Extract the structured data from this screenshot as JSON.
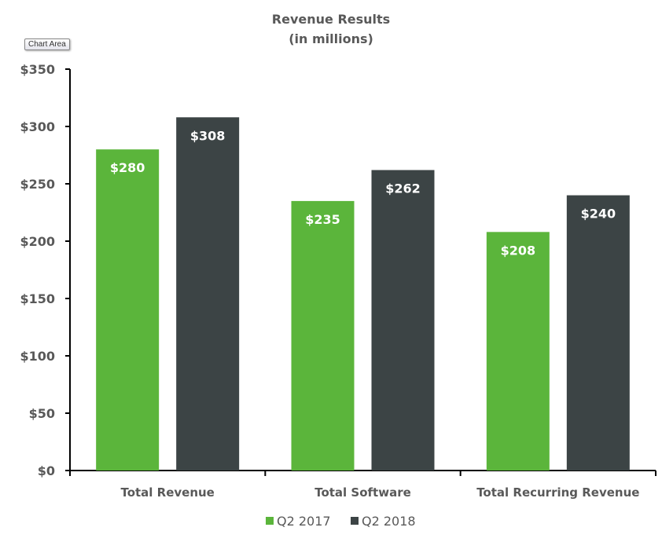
{
  "tooltip": "Chart Area",
  "chart_data": {
    "type": "bar",
    "title": "Revenue Results",
    "subtitle": "(in millions)",
    "categories": [
      "Total Revenue",
      "Total Software",
      "Total Recurring Revenue"
    ],
    "series": [
      {
        "name": "Q2 2017",
        "values": [
          280,
          235,
          208
        ],
        "labels": [
          "$280",
          "$235",
          "$208"
        ],
        "color": "#5bb53b"
      },
      {
        "name": "Q2 2018",
        "values": [
          308,
          262,
          240
        ],
        "labels": [
          "$308",
          "$262",
          "$240"
        ],
        "color": "#3c4445"
      }
    ],
    "ylim": [
      0,
      350
    ],
    "yticks": [
      0,
      50,
      100,
      150,
      200,
      250,
      300,
      350
    ],
    "ytick_labels": [
      "$0",
      "$50",
      "$100",
      "$150",
      "$200",
      "$250",
      "$300",
      "$350"
    ],
    "grid": false,
    "legend": "bottom"
  }
}
